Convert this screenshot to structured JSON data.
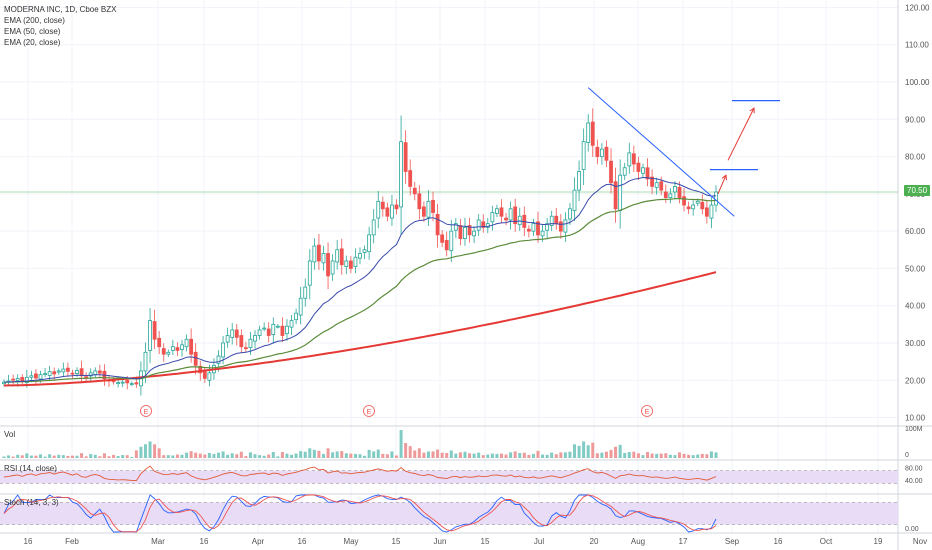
{
  "legend": {
    "symbol": "MODERNA INC, 1D, Cboe BZX",
    "ema200": "EMA (200, close)",
    "ema50": "EMA (50, close)",
    "ema20": "EMA (20, close)"
  },
  "panes": {
    "vol_label": "Vol",
    "rsi_label": "RSI (14, close)",
    "stoch_label": "Stoch (14, 3, 3)"
  },
  "colors": {
    "up": "#26a69a",
    "down": "#ef5350",
    "ema200": "#e53935",
    "ema50": "#5b8c3a",
    "ema20": "#3949ab",
    "trendline": "#2962ff",
    "arrow": "#e53935",
    "rsi_bg": "#e8dcf6",
    "rsi_line": "#e25b3a",
    "stoch_k": "#2962ff",
    "stoch_d": "#ef5350",
    "last_price": "#4caf50"
  },
  "chart_data": {
    "type": "candlestick",
    "title": "MODERNA INC, 1D, Cboe BZX",
    "last_price": "70.50",
    "y_axis": {
      "ylim": [
        8,
        122
      ],
      "ticks": [
        "120.00",
        "110.00",
        "100.00",
        "90.00",
        "80.00",
        "70.00",
        "60.00",
        "50.00",
        "40.00",
        "30.00",
        "20.00",
        "10.00"
      ]
    },
    "vol_axis": {
      "ticks": [
        "100M",
        "0"
      ]
    },
    "rsi_axis": {
      "ticks": [
        "80.00",
        "40.00"
      ]
    },
    "stoch_axis": {
      "ticks": [
        "0.00"
      ]
    },
    "x_ticks": [
      "16",
      "Feb",
      "Mar",
      "16",
      "Apr",
      "16",
      "May",
      "15",
      "Jun",
      "15",
      "Jul",
      "20",
      "Aug",
      "17",
      "Sep",
      "16",
      "Oct",
      "19",
      "Nov"
    ],
    "earnings_markers": [
      "E",
      "E",
      "E"
    ],
    "closes": [
      19.5,
      19.8,
      20.2,
      20.5,
      19.9,
      20.8,
      21.2,
      20.6,
      21.5,
      21.8,
      22.3,
      21.7,
      22.5,
      23.0,
      22.4,
      21.8,
      22.6,
      21.2,
      20.9,
      22.0,
      22.5,
      21.9,
      20.4,
      19.8,
      19.6,
      19.4,
      19.5,
      19.3,
      19.1,
      19.0,
      22.5,
      27.5,
      36.0,
      31.0,
      29.0,
      27.0,
      27.5,
      29.0,
      28.0,
      29.5,
      31.0,
      27.0,
      24.0,
      22.0,
      20.5,
      22.0,
      24.0,
      26.5,
      30.0,
      32.0,
      33.5,
      31.5,
      29.0,
      28.5,
      31.0,
      32.0,
      33.5,
      34.0,
      32.0,
      35.0,
      34.5,
      32.0,
      34.5,
      36.0,
      38.0,
      42.0,
      45.0,
      52.0,
      56.0,
      52.0,
      54.0,
      48.0,
      52.0,
      55.0,
      51.0,
      52.0,
      50.0,
      53.0,
      54.0,
      55.0,
      59.0,
      63.0,
      68.0,
      66.0,
      64.0,
      67.0,
      66.0,
      84.0,
      76.0,
      72.0,
      70.0,
      66.0,
      64.0,
      68.0,
      65.0,
      59.0,
      57.0,
      55.0,
      60.0,
      62.0,
      58.0,
      61.0,
      59.0,
      60.0,
      63.0,
      61.0,
      62.0,
      65.0,
      66.0,
      64.0,
      63.0,
      66.0,
      62.0,
      64.0,
      61.0,
      60.0,
      62.0,
      59.0,
      60.0,
      62.0,
      64.0,
      62.0,
      60.0,
      63.0,
      66.0,
      71.0,
      76.0,
      84.0,
      89.0,
      83.0,
      80.0,
      82.0,
      79.0,
      73.0,
      66.0,
      75.0,
      77.0,
      81.0,
      78.0,
      76.0,
      77.0,
      74.0,
      72.0,
      73.0,
      71.0,
      69.0,
      70.0,
      72.0,
      69.0,
      67.0,
      66.0,
      67.0,
      68.0,
      66.0,
      64.0,
      67.0,
      70.5
    ],
    "ema_levels_end": {
      "ema200": 49.0,
      "ema50": 66.0,
      "ema20": 68.5
    },
    "annotations": [
      {
        "type": "trendline",
        "from": [
          128,
          98.5
        ],
        "to": [
          160,
          64.0
        ]
      },
      {
        "type": "level",
        "value": 76.5
      },
      {
        "type": "level",
        "value": 95.0
      }
    ]
  }
}
